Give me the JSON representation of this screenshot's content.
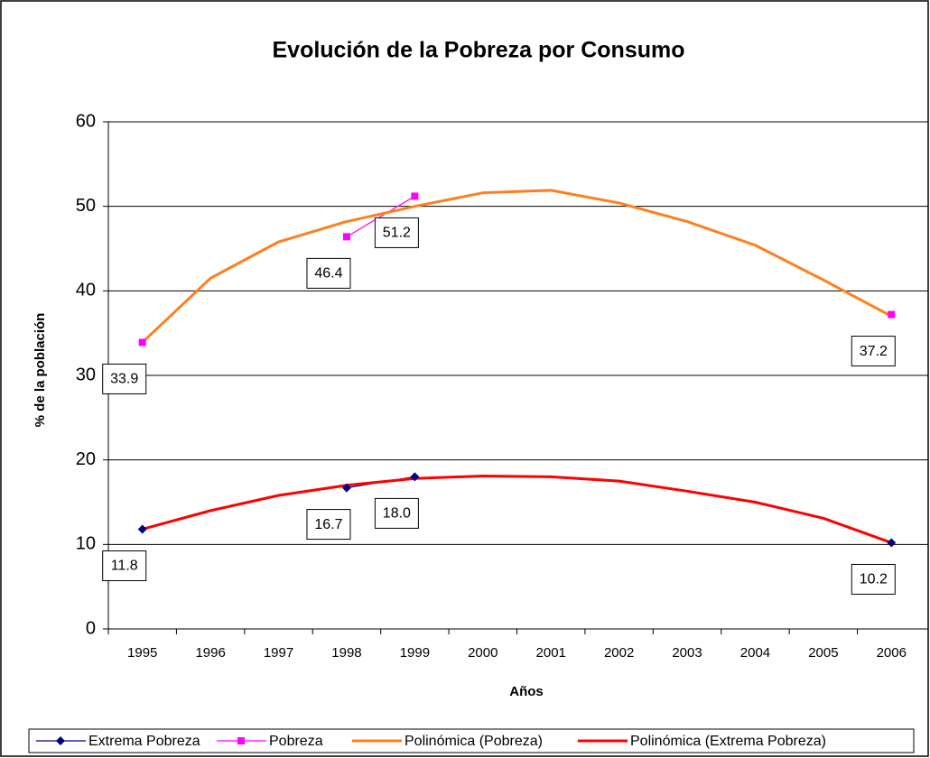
{
  "chart_data": {
    "type": "line",
    "title": "Evolución de la Pobreza por Consumo",
    "xlabel": "Años",
    "ylabel": "% de la población",
    "categories": [
      "1995",
      "1996",
      "1997",
      "1998",
      "1999",
      "2000",
      "2001",
      "2002",
      "2003",
      "2004",
      "2005",
      "2006"
    ],
    "ylim": [
      0,
      60
    ],
    "yticks": [
      0,
      10,
      20,
      30,
      40,
      50,
      60
    ],
    "grid": true,
    "legend": "bottom",
    "series": [
      {
        "name": "Extrema Pobreza",
        "color": "#000080",
        "marker": "diamond",
        "values": [
          11.8,
          null,
          null,
          16.7,
          18.0,
          null,
          null,
          null,
          null,
          null,
          null,
          10.2
        ],
        "value_labels": [
          "11.8",
          null,
          null,
          "16.7",
          "18.0",
          null,
          null,
          null,
          null,
          null,
          null,
          "10.2"
        ]
      },
      {
        "name": "Pobreza",
        "color": "#ff00ff",
        "marker": "square",
        "values": [
          33.9,
          null,
          null,
          46.4,
          51.2,
          null,
          null,
          null,
          null,
          null,
          null,
          37.2
        ],
        "value_labels": [
          "33.9",
          null,
          null,
          "46.4",
          "51.2",
          null,
          null,
          null,
          null,
          null,
          null,
          "37.2"
        ]
      },
      {
        "name": "Polinómica (Pobreza)",
        "color": "#ff7f1e",
        "marker": "none",
        "values": [
          33.9,
          41.5,
          45.8,
          48.2,
          50.0,
          51.6,
          51.9,
          50.4,
          48.2,
          45.4,
          41.3,
          37.0
        ]
      },
      {
        "name": "Polinómica (Extrema Pobreza)",
        "color": "#ff0000",
        "marker": "none",
        "values": [
          11.8,
          14.0,
          15.8,
          17.0,
          17.8,
          18.1,
          18.0,
          17.5,
          16.3,
          15.0,
          13.1,
          10.2
        ]
      }
    ]
  }
}
